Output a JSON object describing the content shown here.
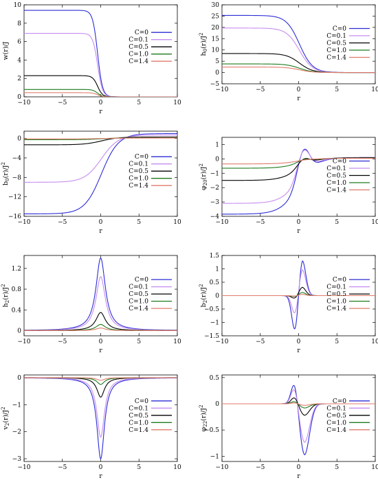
{
  "colors": {
    "C=0": "#2b2bd6",
    "C=0.1": "#c68cf0",
    "C=0.5": "#000000",
    "C=1.0": "#1c7a1c",
    "C=1.4": "#e07a6a"
  },
  "chart_data": [
    {
      "id": "w",
      "type": "line",
      "ylabel_base": "w(r)/J",
      "ylabel_sup": "",
      "xlabel": "r",
      "xlim": [
        -10,
        10
      ],
      "ylim": [
        0,
        10
      ],
      "yticks": [
        0,
        2,
        4,
        6,
        8,
        10
      ],
      "yticklabels": [
        "0",
        "2",
        "4",
        "6",
        "8",
        "10"
      ],
      "xticks": [
        -10,
        -5,
        0,
        5,
        10
      ],
      "xticklabels": [
        "−10",
        "−5",
        "0",
        "5",
        "10"
      ],
      "grid": false,
      "legend_position": "right-middle",
      "shape": "step",
      "series": [
        {
          "name": "C=0",
          "left": 9.4,
          "right": 0
        },
        {
          "name": "C=0.1",
          "left": 6.9,
          "right": 0
        },
        {
          "name": "C=0.5",
          "left": 2.3,
          "right": 0
        },
        {
          "name": "C=1.0",
          "left": 0.8,
          "right": 0
        },
        {
          "name": "C=1.4",
          "left": 0.45,
          "right": 0
        }
      ]
    },
    {
      "id": "h0",
      "type": "line",
      "ylabel_base": "h",
      "ylabel_sub": "0",
      "ylabel_rest": "(r)/J",
      "ylabel_sup": "2",
      "xlabel": "r",
      "xlim": [
        -10,
        10
      ],
      "ylim": [
        -5,
        30
      ],
      "yticks": [
        -5,
        0,
        5,
        10,
        15,
        20,
        25,
        30
      ],
      "yticklabels": [
        "−5",
        "0",
        "5",
        "10",
        "15",
        "20",
        "25",
        "30"
      ],
      "xticks": [
        -10,
        -5,
        0,
        5,
        10
      ],
      "xticklabels": [
        "−10",
        "−5",
        "0",
        "5",
        "10"
      ],
      "grid": false,
      "legend_position": "right-middle",
      "shape": "decay",
      "series": [
        {
          "name": "C=0",
          "left": 25.3,
          "right": 0
        },
        {
          "name": "C=0.1",
          "left": 19.7,
          "right": 0
        },
        {
          "name": "C=0.5",
          "left": 8.4,
          "right": 0
        },
        {
          "name": "C=1.0",
          "left": 3.8,
          "right": 0
        },
        {
          "name": "C=1.4",
          "left": 2.4,
          "right": 0
        }
      ]
    },
    {
      "id": "b0",
      "type": "line",
      "ylabel_base": "b",
      "ylabel_sub": "0",
      "ylabel_rest": "(r)/J",
      "ylabel_sup": "2",
      "xlabel": "r",
      "xlim": [
        -10,
        10
      ],
      "ylim": [
        -16,
        1.5
      ],
      "yticks": [
        -16,
        -12,
        -8,
        -4,
        0
      ],
      "yticklabels": [
        "−16",
        "−12",
        "−8",
        "−4",
        "0"
      ],
      "xticks": [
        -10,
        -5,
        0,
        5,
        10
      ],
      "xticklabels": [
        "−10",
        "−5",
        "0",
        "5",
        "10"
      ],
      "grid": false,
      "legend_position": "right-middle",
      "shape": "rise",
      "series": [
        {
          "name": "C=0",
          "left": -15.5,
          "right": 1.0
        },
        {
          "name": "C=0.1",
          "left": -9.0,
          "right": 0.7
        },
        {
          "name": "C=0.5",
          "left": -1.3,
          "right": 0.3
        },
        {
          "name": "C=1.0",
          "left": -0.25,
          "right": 0.12
        },
        {
          "name": "C=1.4",
          "left": -0.1,
          "right": 0.08
        }
      ]
    },
    {
      "id": "phi20",
      "type": "line",
      "ylabel_base": "φ",
      "ylabel_sub": "20",
      "ylabel_rest": "(r)/J",
      "ylabel_sup": "2",
      "xlabel": "r",
      "xlim": [
        -10,
        10
      ],
      "ylim": [
        -4,
        1.5
      ],
      "yticks": [
        -4,
        -3,
        -2,
        -1,
        0,
        1
      ],
      "yticklabels": [
        "−4",
        "−3",
        "−2",
        "−1",
        "0",
        "1"
      ],
      "xticks": [
        -10,
        -5,
        0,
        5,
        10
      ],
      "xticklabels": [
        "−10",
        "−5",
        "0",
        "5",
        "10"
      ],
      "grid": false,
      "legend_position": "right-middle",
      "shape": "rise-peak",
      "series": [
        {
          "name": "C=0",
          "left": -3.85,
          "right": 0.1,
          "peak": 1.0
        },
        {
          "name": "C=0.1",
          "left": -3.1,
          "right": 0.1,
          "peak": 0.85
        },
        {
          "name": "C=0.5",
          "left": -1.5,
          "right": 0.08,
          "peak": 0.3
        },
        {
          "name": "C=1.0",
          "left": -0.65,
          "right": 0.05,
          "peak": 0.12
        },
        {
          "name": "C=1.4",
          "left": -0.35,
          "right": 0.04,
          "peak": 0.05
        }
      ]
    },
    {
      "id": "h2",
      "type": "line",
      "ylabel_base": "h",
      "ylabel_sub": "2",
      "ylabel_rest": "(r)/J",
      "ylabel_sup": "2",
      "xlabel": "r",
      "xlim": [
        -10,
        10
      ],
      "ylim": [
        -0.1,
        1.45
      ],
      "yticks": [
        0,
        0.4,
        0.8,
        1.2
      ],
      "yticklabels": [
        "0",
        "0.4",
        "0.8",
        "1.2"
      ],
      "xticks": [
        -10,
        -5,
        0,
        5,
        10
      ],
      "xticklabels": [
        "−10",
        "−5",
        "0",
        "5",
        "10"
      ],
      "grid": false,
      "legend_position": "right-middle",
      "shape": "peak",
      "series": [
        {
          "name": "C=0",
          "peak": 1.4
        },
        {
          "name": "C=0.1",
          "peak": 1.04
        },
        {
          "name": "C=0.5",
          "peak": 0.35
        },
        {
          "name": "C=1.0",
          "peak": 0.12
        },
        {
          "name": "C=1.4",
          "peak": 0.05
        }
      ]
    },
    {
      "id": "b2",
      "type": "line",
      "ylabel_base": "b",
      "ylabel_sub": "2",
      "ylabel_rest": "(r)/J",
      "ylabel_sup": "2",
      "xlabel": "r",
      "xlim": [
        -10,
        10
      ],
      "ylim": [
        -1.5,
        1.5
      ],
      "yticks": [
        -1.5,
        -1,
        -0.5,
        0,
        0.5,
        1,
        1.5
      ],
      "yticklabels": [
        "−1.5",
        "−1",
        "−0.5",
        "0",
        "0.5",
        "1",
        "1.5"
      ],
      "xticks": [
        -10,
        -5,
        0,
        5,
        10
      ],
      "xticklabels": [
        "−10",
        "−5",
        "0",
        "5",
        "10"
      ],
      "grid": false,
      "legend_position": "right-middle",
      "shape": "dipole-down-up",
      "series": [
        {
          "name": "C=0",
          "neg": -1.4,
          "pos": 1.4
        },
        {
          "name": "C=0.1",
          "neg": -0.75,
          "pos": 1.02
        },
        {
          "name": "C=0.5",
          "neg": -0.12,
          "pos": 0.32
        },
        {
          "name": "C=1.0",
          "neg": -0.04,
          "pos": 0.12
        },
        {
          "name": "C=1.4",
          "neg": -0.02,
          "pos": 0.05
        }
      ]
    },
    {
      "id": "v2",
      "type": "line",
      "ylabel_base": "v",
      "ylabel_sub": "2",
      "ylabel_rest": "(r)/J",
      "ylabel_sup": "2",
      "xlabel": "r",
      "xlim": [
        -10,
        10
      ],
      "ylim": [
        -3.1,
        0.1
      ],
      "yticks": [
        -3,
        -2,
        -1,
        0
      ],
      "yticklabels": [
        "−3",
        "−2",
        "−1",
        "0"
      ],
      "xticks": [
        -10,
        -5,
        0,
        5,
        10
      ],
      "xticklabels": [
        "−10",
        "−5",
        "0",
        "5",
        "10"
      ],
      "grid": false,
      "legend_position": "right-middle",
      "shape": "dip",
      "series": [
        {
          "name": "C=0",
          "peak": -3.0
        },
        {
          "name": "C=0.1",
          "peak": -2.2
        },
        {
          "name": "C=0.5",
          "peak": -0.72
        },
        {
          "name": "C=1.0",
          "peak": -0.25
        },
        {
          "name": "C=1.4",
          "peak": -0.1
        }
      ]
    },
    {
      "id": "phi22",
      "type": "line",
      "ylabel_base": "φ",
      "ylabel_sub": "22",
      "ylabel_rest": "(r)/J",
      "ylabel_sup": "2",
      "xlabel": "r",
      "xlim": [
        -10,
        10
      ],
      "ylim": [
        -1.1,
        0.55
      ],
      "yticks": [
        -1,
        -0.5,
        0,
        0.5
      ],
      "yticklabels": [
        "−1",
        "−0.5",
        "0",
        "0.5"
      ],
      "xticks": [
        -10,
        -5,
        0,
        5,
        10
      ],
      "xticklabels": [
        "−10",
        "−5",
        "0",
        "5",
        "10"
      ],
      "grid": false,
      "legend_position": "right-middle",
      "shape": "dipole-up-down",
      "series": [
        {
          "name": "C=0",
          "pos": 0.47,
          "neg": -0.98
        },
        {
          "name": "C=0.1",
          "pos": 0.36,
          "neg": -0.74
        },
        {
          "name": "C=0.5",
          "pos": 0.14,
          "neg": -0.22
        },
        {
          "name": "C=1.0",
          "pos": 0.05,
          "neg": -0.08
        },
        {
          "name": "C=1.4",
          "pos": 0.02,
          "neg": -0.03
        }
      ]
    }
  ]
}
